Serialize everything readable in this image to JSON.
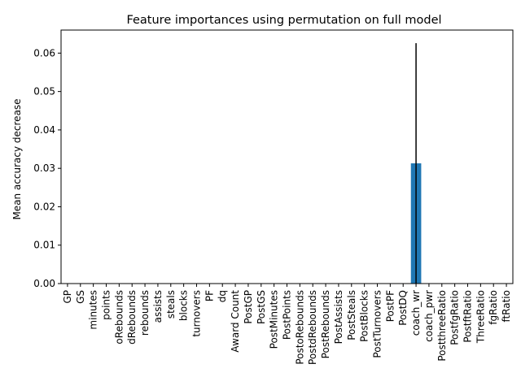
{
  "chart_data": {
    "type": "bar",
    "title": "Feature importances using permutation on full model",
    "xlabel": "",
    "ylabel": "Mean accuracy decrease",
    "ylim": [
      0,
      0.066
    ],
    "yticks": [
      0.0,
      0.01,
      0.02,
      0.03,
      0.04,
      0.05,
      0.06
    ],
    "ytick_labels": [
      "0.00",
      "0.01",
      "0.02",
      "0.03",
      "0.04",
      "0.05",
      "0.06"
    ],
    "categories": [
      "GP",
      "GS",
      "minutes",
      "points",
      "oRebounds",
      "dRebounds",
      "rebounds",
      "assists",
      "steals",
      "blocks",
      "turnovers",
      "PF",
      "dq",
      "Award Count",
      "PostGP",
      "PostGS",
      "PostMinutes",
      "PostPoints",
      "PostoRebounds",
      "PostdRebounds",
      "PostRebounds",
      "PostAssists",
      "PostSteals",
      "PostBlocks",
      "PostTurnovers",
      "PostPF",
      "PostDQ",
      "coach_wr",
      "coach_pwr",
      "PostthreeRatio",
      "PostfgRatio",
      "PostftRatio",
      "ThreeRatio",
      "fgRatio",
      "ftRatio"
    ],
    "values": [
      0,
      0,
      0,
      0,
      0,
      0,
      0,
      0,
      0,
      0,
      0,
      0,
      0,
      0,
      0,
      0,
      0,
      0,
      0,
      0,
      0,
      0,
      0,
      0,
      0,
      0,
      0,
      0.0313,
      0,
      0,
      0,
      0,
      0,
      0,
      0
    ],
    "errors": [
      0,
      0,
      0,
      0,
      0,
      0,
      0,
      0,
      0,
      0,
      0,
      0,
      0,
      0,
      0,
      0,
      0,
      0,
      0,
      0,
      0,
      0,
      0,
      0,
      0,
      0,
      0,
      0.0313,
      0,
      0,
      0,
      0,
      0,
      0,
      0
    ],
    "grid": false,
    "bar_color": "#1f77b4",
    "error_color": "#000000"
  }
}
